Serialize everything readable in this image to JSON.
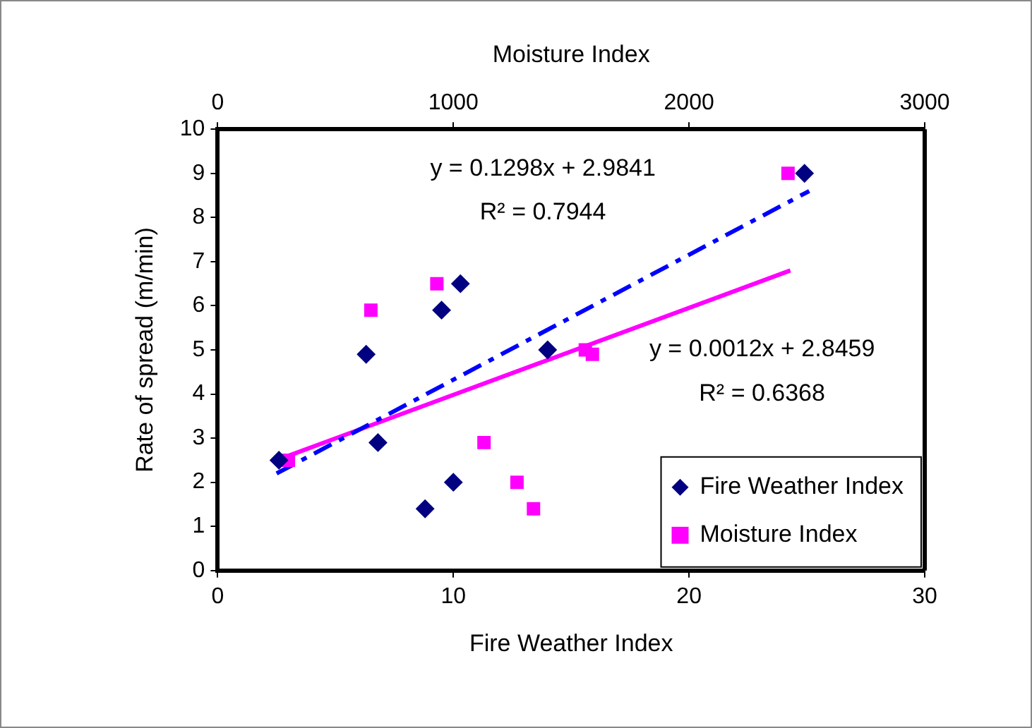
{
  "chart_data": {
    "type": "scatter",
    "xlabel": "Fire Weather Index",
    "x2label": "Moisture Index",
    "ylabel": "Rate of spread (m/min)",
    "xlim": [
      0,
      30
    ],
    "xticks": [
      0,
      10,
      20,
      30
    ],
    "x2lim": [
      0,
      3000
    ],
    "x2ticks": [
      0,
      1000,
      2000,
      3000
    ],
    "ylim": [
      0,
      10
    ],
    "yticks": [
      0,
      1,
      2,
      3,
      4,
      5,
      6,
      7,
      8,
      9,
      10
    ],
    "grid": false,
    "legend": "bottom right",
    "series": [
      {
        "name": "Fire Weather Index",
        "marker": "diamond",
        "color": "#000080",
        "x": [
          2.6,
          6.3,
          6.8,
          8.8,
          9.5,
          10,
          10.3,
          14,
          24.9
        ],
        "values": [
          2.5,
          4.9,
          2.9,
          1.4,
          5.9,
          2,
          6.5,
          5,
          9
        ]
      },
      {
        "name": "Moisture Index",
        "marker": "square",
        "axis": "x2",
        "color": "#ff00ff",
        "x": [
          300,
          650,
          930,
          1130,
          1270,
          1340,
          1560,
          1590,
          2420
        ],
        "values": [
          2.5,
          5.9,
          6.5,
          2.9,
          2,
          1.4,
          5,
          4.9,
          9
        ]
      },
      {
        "type": "line",
        "marker": "none",
        "line_style": "dashed",
        "color": "#0000ff",
        "x": [
          2.5,
          25.1
        ],
        "values": [
          2.2,
          8.6
        ]
      },
      {
        "type": "line",
        "marker": "none",
        "line_style": "solid",
        "axis": "x2",
        "color": "#ff00ff",
        "x": [
          300,
          2430
        ],
        "values": [
          2.6,
          6.8
        ]
      }
    ],
    "annotations": [
      "y = 0.1298x + 2.9841",
      "R² = 0.7944",
      "y = 0.0012x + 2.8459",
      "R² = 0.6368"
    ]
  }
}
